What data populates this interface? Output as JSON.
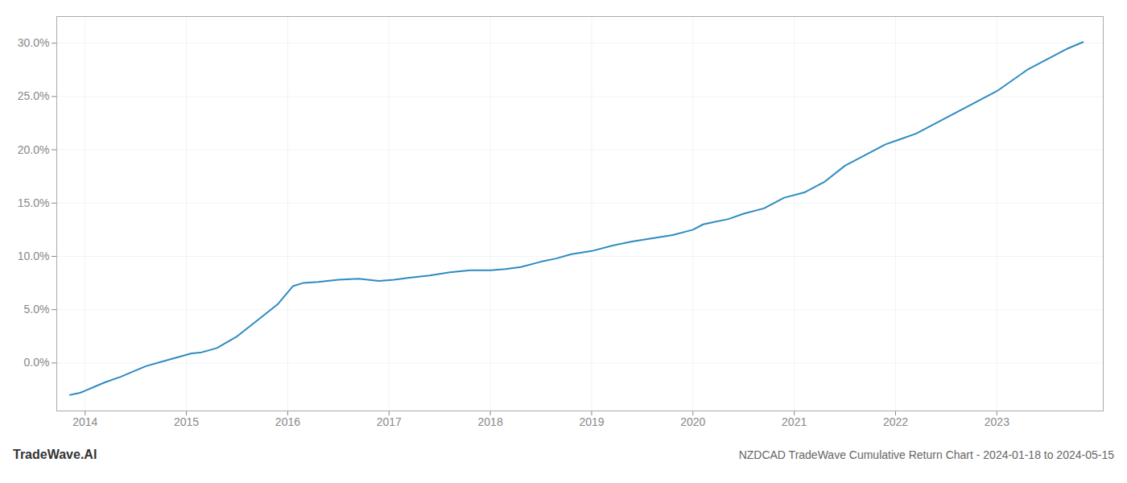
{
  "chart_data": {
    "type": "line",
    "title": "NZDCAD TradeWave Cumulative Return Chart - 2024-01-18 to 2024-05-15",
    "annotations": [
      "TradeWave.AI"
    ],
    "x": [
      2013.85,
      2013.9,
      2013.95,
      2014.0,
      2014.1,
      2014.2,
      2014.35,
      2014.5,
      2014.6,
      2014.75,
      2014.9,
      2015.05,
      2015.15,
      2015.3,
      2015.5,
      2015.7,
      2015.9,
      2016.05,
      2016.15,
      2016.3,
      2016.5,
      2016.7,
      2016.9,
      2017.05,
      2017.2,
      2017.4,
      2017.6,
      2017.8,
      2018.0,
      2018.15,
      2018.3,
      2018.5,
      2018.65,
      2018.8,
      2019.0,
      2019.2,
      2019.4,
      2019.6,
      2019.8,
      2020.0,
      2020.1,
      2020.2,
      2020.35,
      2020.5,
      2020.7,
      2020.9,
      2021.1,
      2021.3,
      2021.5,
      2021.7,
      2021.9,
      2022.05,
      2022.2,
      2022.4,
      2022.6,
      2022.8,
      2023.0,
      2023.15,
      2023.3,
      2023.5,
      2023.7,
      2023.85
    ],
    "values": [
      -3.0,
      -2.9,
      -2.8,
      -2.6,
      -2.2,
      -1.8,
      -1.3,
      -0.7,
      -0.3,
      0.1,
      0.5,
      0.9,
      1.0,
      1.4,
      2.5,
      4.0,
      5.5,
      7.2,
      7.5,
      7.6,
      7.8,
      7.9,
      7.7,
      7.8,
      8.0,
      8.2,
      8.5,
      8.7,
      8.7,
      8.8,
      9.0,
      9.5,
      9.8,
      10.2,
      10.5,
      11.0,
      11.4,
      11.7,
      12.0,
      12.5,
      13.0,
      13.2,
      13.5,
      14.0,
      14.5,
      15.5,
      16.0,
      17.0,
      18.5,
      19.5,
      20.5,
      21.0,
      21.5,
      22.5,
      23.5,
      24.5,
      25.5,
      26.5,
      27.5,
      28.5,
      29.5,
      30.1
    ],
    "color": "#2e8bc0",
    "xlim": [
      2013.72,
      2024.05
    ],
    "xticks": [
      2014,
      2015,
      2016,
      2017,
      2018,
      2019,
      2020,
      2021,
      2022,
      2023
    ],
    "ylim": [
      -4.5,
      32.5
    ],
    "yticks": [
      {
        "value": 0.0,
        "label": "0.0%"
      },
      {
        "value": 5.0,
        "label": "5.0%"
      },
      {
        "value": 10.0,
        "label": "10.0%"
      },
      {
        "value": 15.0,
        "label": "15.0%"
      },
      {
        "value": 20.0,
        "label": "20.0%"
      },
      {
        "value": 25.0,
        "label": "25.0%"
      },
      {
        "value": 30.0,
        "label": "30.0%"
      }
    ],
    "grid": true
  }
}
